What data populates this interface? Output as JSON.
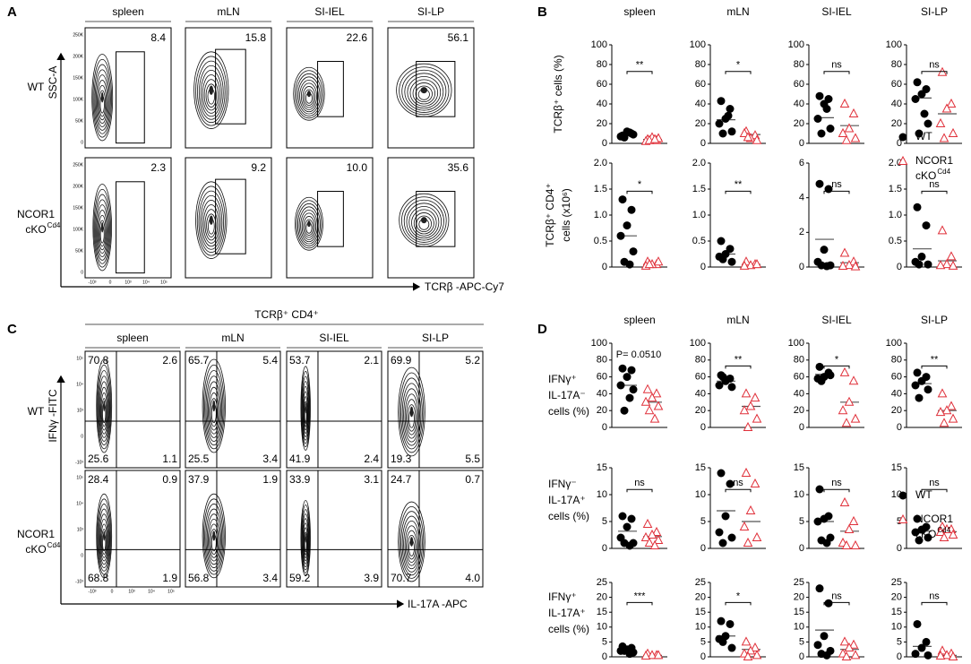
{
  "groups": [
    {
      "name": "WT",
      "color": "#000000"
    },
    {
      "name": "NCOR1",
      "name2": "cKO",
      "sup": "Cd4",
      "color": "#e0303a"
    }
  ],
  "panel_a": {
    "letter": "A",
    "columns": [
      "spleen",
      "mLN",
      "SI-IEL",
      "SI-LP"
    ],
    "y_axis": "SSC-A",
    "x_axis": "TCRβ -APC-Cy7",
    "yticks": [
      "0",
      "50K",
      "100K",
      "150K",
      "200K",
      "250K"
    ],
    "xticks": [
      "-10³",
      "0",
      "10³",
      "10⁴",
      "10⁵"
    ],
    "gates": [
      [
        "8.4",
        "15.8",
        "22.6",
        "56.1"
      ],
      [
        "2.3",
        "9.2",
        "10.0",
        "35.6"
      ]
    ]
  },
  "panel_b": {
    "letter": "B",
    "columns": [
      "spleen",
      "mLN",
      "SI-IEL",
      "SI-LP"
    ],
    "rows": [
      {
        "ylabel": [
          "TCRβ⁺ cells (%)"
        ],
        "plots": [
          {
            "ylim": [
              0,
              100
            ],
            "yticks": [
              0,
              20,
              40,
              60,
              80,
              100
            ],
            "sig": "**",
            "wt": [
              8,
              10,
              12,
              7,
              9,
              6,
              11
            ],
            "ko": [
              4,
              3,
              6,
              2,
              5,
              3,
              4
            ],
            "wt_mean": 9,
            "ko_mean": 4
          },
          {
            "ylim": [
              0,
              100
            ],
            "yticks": [
              0,
              20,
              40,
              60,
              80,
              100
            ],
            "sig": "*",
            "wt": [
              43,
              35,
              25,
              20,
              12,
              10,
              28
            ],
            "ko": [
              12,
              8,
              5,
              10,
              3,
              6
            ],
            "wt_mean": 24,
            "ko_mean": 9
          },
          {
            "ylim": [
              0,
              100
            ],
            "yticks": [
              0,
              20,
              40,
              60,
              80,
              100
            ],
            "sig": "ns",
            "wt": [
              48,
              45,
              40,
              25,
              15,
              10,
              35
            ],
            "ko": [
              40,
              30,
              15,
              10,
              5,
              3
            ],
            "wt_mean": 26,
            "ko_mean": 18
          },
          {
            "ylim": [
              0,
              100
            ],
            "yticks": [
              0,
              20,
              40,
              60,
              80,
              100
            ],
            "sig": "ns",
            "wt": [
              62,
              55,
              50,
              45,
              20,
              10,
              30
            ],
            "ko": [
              72,
              40,
              35,
              20,
              10,
              5
            ],
            "wt_mean": 46,
            "ko_mean": 30
          }
        ]
      },
      {
        "ylabel": [
          "TCRβ⁺ CD4⁺",
          "cells (x10⁶)"
        ],
        "plots": [
          {
            "ylim": [
              0,
              2
            ],
            "yticks": [
              0,
              0.5,
              {
                "value": 1,
                "label": "1.0"
              },
              1.5,
              {
                "value": 2,
                "label": "2.0"
              }
            ],
            "sig": "*",
            "wt": [
              1.3,
              1.1,
              0.8,
              0.6,
              0.3,
              0.1,
              0.05
            ],
            "ko": [
              0.1,
              0.05,
              0.05,
              0.02,
              0.1,
              0.05
            ],
            "wt_mean": 0.6,
            "ko_mean": 0.05
          },
          {
            "ylim": [
              0,
              2
            ],
            "yticks": [
              0,
              0.5,
              {
                "value": 1,
                "label": "1.0"
              },
              1.5,
              {
                "value": 2,
                "label": "2.0"
              }
            ],
            "sig": "**",
            "wt": [
              0.5,
              0.35,
              0.25,
              0.2,
              0.1,
              0.15
            ],
            "ko": [
              0.1,
              0.05,
              0.03,
              0.02,
              0.05
            ],
            "wt_mean": 0.25,
            "ko_mean": 0.05
          },
          {
            "ylim": [
              0,
              6
            ],
            "yticks": [
              0,
              2,
              4,
              6
            ],
            "sig": "ns",
            "wt": [
              4.8,
              4.5,
              1.0,
              0.3,
              0.1,
              0.1,
              0.05
            ],
            "ko": [
              0.8,
              0.3,
              0.1,
              0.05,
              0.02
            ],
            "wt_mean": 1.6,
            "ko_mean": 0.25
          },
          {
            "ylim": [
              0,
              2
            ],
            "yticks": [
              0,
              0.5,
              {
                "value": 1,
                "label": "1.0"
              },
              1.5,
              {
                "value": 2,
                "label": "2.0"
              }
            ],
            "sig": "ns",
            "wt": [
              1.15,
              0.8,
              0.2,
              0.1,
              0.05,
              0.05
            ],
            "ko": [
              0.7,
              0.2,
              0.05,
              0.03,
              0.02
            ],
            "wt_mean": 0.35,
            "ko_mean": 0.12
          }
        ]
      }
    ]
  },
  "panel_c": {
    "letter": "C",
    "header": "TCRβ⁺ CD4⁺",
    "columns": [
      "spleen",
      "mLN",
      "SI-IEL",
      "SI-LP"
    ],
    "y_axis": "IFNγ -FITC",
    "x_axis": "IL-17A -APC",
    "ticks": [
      "-10³",
      "0",
      "10³",
      "10⁴",
      "10⁵"
    ],
    "quadrants": [
      [
        [
          "70.8",
          "2.6",
          "25.6",
          "1.1"
        ],
        [
          "65.7",
          "5.4",
          "25.5",
          "3.4"
        ],
        [
          "53.7",
          "2.1",
          "41.9",
          "2.4"
        ],
        [
          "69.9",
          "5.2",
          "19.3",
          "5.5"
        ]
      ],
      [
        [
          "28.4",
          "0.9",
          "68.8",
          "1.9"
        ],
        [
          "37.9",
          "1.9",
          "56.8",
          "3.4"
        ],
        [
          "33.9",
          "3.1",
          "59.2",
          "3.9"
        ],
        [
          "24.7",
          "0.7",
          "70.7",
          "4.0"
        ]
      ]
    ]
  },
  "panel_d": {
    "letter": "D",
    "columns": [
      "spleen",
      "mLN",
      "SI-IEL",
      "SI-LP"
    ],
    "rows": [
      {
        "ylabel": [
          "IFNγ⁺",
          "IL-17A⁻",
          "cells (%)"
        ],
        "plots": [
          {
            "ylim": [
              0,
              100
            ],
            "yticks": [
              0,
              20,
              40,
              60,
              80,
              100
            ],
            "sig": "P= 0.0510",
            "bracket": false,
            "wt": [
              70,
              68,
              60,
              50,
              45,
              20,
              35
            ],
            "ko": [
              45,
              40,
              35,
              30,
              25,
              20,
              10
            ],
            "wt_mean": 50,
            "ko_mean": 30
          },
          {
            "ylim": [
              0,
              100
            ],
            "yticks": [
              0,
              20,
              40,
              60,
              80,
              100
            ],
            "sig": "**",
            "wt": [
              62,
              58,
              55,
              50,
              48,
              60
            ],
            "ko": [
              40,
              35,
              25,
              20,
              10,
              0
            ],
            "wt_mean": 55,
            "ko_mean": 25
          },
          {
            "ylim": [
              0,
              100
            ],
            "yticks": [
              0,
              20,
              40,
              60,
              80,
              100
            ],
            "sig": "*",
            "wt": [
              72,
              65,
              60,
              58,
              62,
              55
            ],
            "ko": [
              65,
              55,
              30,
              20,
              10,
              5
            ],
            "wt_mean": 63,
            "ko_mean": 30
          },
          {
            "ylim": [
              0,
              100
            ],
            "yticks": [
              0,
              20,
              40,
              60,
              80,
              100
            ],
            "sig": "**",
            "wt": [
              65,
              60,
              55,
              50,
              45,
              35
            ],
            "ko": [
              40,
              25,
              20,
              18,
              10,
              5
            ],
            "wt_mean": 52,
            "ko_mean": 20
          }
        ]
      },
      {
        "ylabel": [
          "IFNγ⁻",
          "IL-17A⁺",
          "cells (%)"
        ],
        "plots": [
          {
            "ylim": [
              0,
              15
            ],
            "yticks": [
              0,
              5,
              10,
              15
            ],
            "sig": "ns",
            "wt": [
              6,
              5.5,
              4,
              2,
              1,
              1,
              0.5
            ],
            "ko": [
              4.5,
              3,
              2.5,
              2,
              1.5,
              1,
              0.5
            ],
            "wt_mean": 3.2,
            "ko_mean": 2.2
          },
          {
            "ylim": [
              0,
              15
            ],
            "yticks": [
              0,
              5,
              10,
              15
            ],
            "sig": "ns",
            "wt": [
              14,
              12,
              6,
              3,
              2,
              1
            ],
            "ko": [
              14,
              12,
              7,
              4,
              2,
              1
            ],
            "wt_mean": 7,
            "ko_mean": 5
          },
          {
            "ylim": [
              0,
              15
            ],
            "yticks": [
              0,
              5,
              10,
              15
            ],
            "sig": "ns",
            "wt": [
              11,
              6,
              5.5,
              5,
              2,
              1.5,
              1
            ],
            "ko": [
              8.5,
              5,
              3.5,
              1,
              0.5,
              0.5
            ],
            "wt_mean": 5,
            "ko_mean": 3.2
          },
          {
            "ylim": [
              0,
              15
            ],
            "yticks": [
              0,
              5,
              10,
              15
            ],
            "sig": "ns",
            "wt": [
              5.5,
              4,
              3.5,
              3,
              2,
              1.5
            ],
            "ko": [
              4,
              3.5,
              3.5,
              3,
              2.5,
              2
            ],
            "wt_mean": 3.2,
            "ko_mean": 3.1
          }
        ]
      },
      {
        "ylabel": [
          "IFNγ⁺",
          "IL-17A⁺",
          "cells (%)"
        ],
        "plots": [
          {
            "ylim": [
              0,
              25
            ],
            "yticks": [
              0,
              5,
              10,
              15,
              20,
              25
            ],
            "sig": "***",
            "wt": [
              3.5,
              3,
              2.5,
              2,
              1.5,
              2,
              1
            ],
            "ko": [
              1,
              0.5,
              0.5,
              0.3,
              0.5
            ],
            "wt_mean": 2,
            "ko_mean": 0.5
          },
          {
            "ylim": [
              0,
              25
            ],
            "yticks": [
              0,
              5,
              10,
              15,
              20,
              25
            ],
            "sig": "*",
            "wt": [
              12,
              11,
              7,
              6,
              3,
              5
            ],
            "ko": [
              5,
              3,
              2,
              1,
              0.5,
              0
            ],
            "wt_mean": 7,
            "ko_mean": 2.5
          },
          {
            "ylim": [
              0,
              25
            ],
            "yticks": [
              0,
              5,
              10,
              15,
              20,
              25
            ],
            "sig": "ns",
            "wt": [
              23,
              18,
              7,
              4,
              2,
              1,
              0.5
            ],
            "ko": [
              5,
              4,
              3,
              1,
              0.5,
              0
            ],
            "wt_mean": 9,
            "ko_mean": 2.5
          },
          {
            "ylim": [
              0,
              25
            ],
            "yticks": [
              0,
              5,
              10,
              15,
              20,
              25
            ],
            "sig": "ns",
            "wt": [
              11,
              5,
              3,
              1,
              0.5
            ],
            "ko": [
              2,
              1,
              0.5,
              0.3,
              0
            ],
            "wt_mean": 3.5,
            "ko_mean": 0.5
          }
        ]
      }
    ]
  }
}
